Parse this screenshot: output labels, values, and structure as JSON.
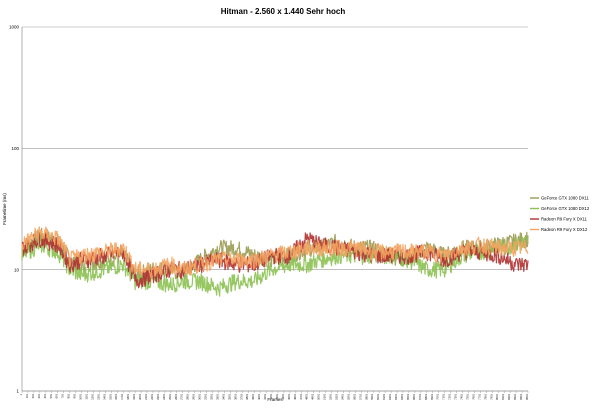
{
  "chart_data": {
    "type": "line",
    "title": "Hitman - 2.560 x 1.440 Sehr hoch",
    "xlabel": "Frames",
    "ylabel": "Frametime (ms)",
    "yscale": "log",
    "ylim": [
      1,
      1000
    ],
    "yticks": [
      "1",
      "10",
      "100",
      "1000"
    ],
    "xlim": [
      1,
      8501
    ],
    "grid": true,
    "legend_position": "right",
    "series": [
      {
        "name": "GeForce GTX 1080 DX11",
        "color": "#9a9a52",
        "x": [
          1,
          300,
          600,
          800,
          1000,
          1400,
          1700,
          1900,
          2200,
          2500,
          2700,
          3000,
          3300,
          3600,
          3900,
          4200,
          4500,
          4800,
          5000,
          5300,
          5600,
          5900,
          6200,
          6500,
          6800,
          7100,
          7400,
          7700,
          8000,
          8300,
          8501
        ],
        "y": [
          14,
          19,
          17,
          12,
          11,
          12,
          13,
          9,
          10,
          10,
          9,
          12,
          15,
          15,
          13,
          12,
          13,
          15,
          15,
          17,
          15,
          15,
          13,
          12,
          15,
          13,
          15,
          15,
          16,
          17,
          18
        ]
      },
      {
        "name": "GeForce GTX 1080 DX12",
        "color": "#8cc152",
        "x": [
          1,
          300,
          600,
          800,
          1000,
          1400,
          1700,
          1900,
          2200,
          2500,
          2700,
          3000,
          3300,
          3600,
          3900,
          4200,
          4500,
          4800,
          5000,
          5300,
          5600,
          5900,
          6200,
          6500,
          6800,
          7100,
          7400,
          7700,
          8000,
          8300,
          8501
        ],
        "y": [
          13,
          16,
          14,
          10,
          9,
          10,
          11,
          8,
          8,
          7.5,
          8,
          8,
          7,
          8,
          8,
          10,
          11,
          11,
          12,
          13,
          13,
          13,
          13,
          12,
          10,
          10,
          13,
          14,
          15,
          16,
          17
        ]
      },
      {
        "name": "Radeon R9 Fury X DX11",
        "color": "#b03030",
        "x": [
          1,
          300,
          600,
          800,
          1000,
          1400,
          1700,
          1900,
          2200,
          2500,
          2700,
          3000,
          3300,
          3600,
          3900,
          4200,
          4500,
          4800,
          5000,
          5300,
          5600,
          5900,
          6200,
          6500,
          6800,
          7100,
          7400,
          7700,
          8000,
          8300,
          8501
        ],
        "y": [
          15,
          18,
          16,
          11,
          12,
          13,
          14,
          8,
          9,
          10,
          10,
          11,
          12,
          11,
          11,
          13,
          13,
          18,
          16,
          15,
          14,
          13,
          13,
          13,
          14,
          12,
          14,
          14,
          13,
          11,
          11
        ]
      },
      {
        "name": "Radeon R9 Fury X DX12",
        "color": "#f4a460",
        "x": [
          1,
          300,
          600,
          800,
          1000,
          1400,
          1700,
          1900,
          2200,
          2500,
          2700,
          3000,
          3300,
          3600,
          3900,
          4200,
          4500,
          4800,
          5000,
          5300,
          5600,
          5900,
          6200,
          6500,
          6800,
          7100,
          7400,
          7700,
          8000,
          8300,
          8501
        ],
        "y": [
          16,
          20,
          18,
          12,
          13,
          14,
          15,
          10,
          10,
          11,
          10,
          11,
          12,
          12,
          12,
          13,
          14,
          15,
          15,
          15,
          15,
          14,
          14,
          14,
          14,
          13,
          15,
          16,
          15,
          15,
          15
        ]
      }
    ]
  }
}
